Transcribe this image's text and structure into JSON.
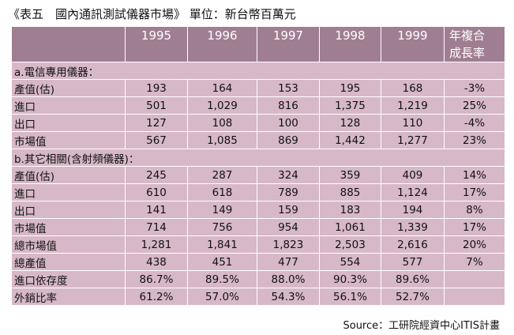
{
  "title": "《表五　國內通訊測試儀器市場》 單位：新台幣百萬元",
  "headers": [
    "1995",
    "1996",
    "1997",
    "1998",
    "1999"
  ],
  "growth_header_line1": "年複合",
  "growth_header_line2": "成長率",
  "sections": [
    {
      "label": "a.電信專用儀器：",
      "rows": [
        {
          "name": "產值(估)",
          "values": [
            "193",
            "164",
            "153",
            "195",
            "168"
          ],
          "growth": "-3%"
        },
        {
          "name": "進口",
          "values": [
            "501",
            "1,029",
            "816",
            "1,375",
            "1,219"
          ],
          "growth": "25%"
        },
        {
          "name": "出口",
          "values": [
            "127",
            "108",
            "100",
            "128",
            "110"
          ],
          "growth": "-4%"
        },
        {
          "name": "市場值",
          "values": [
            "567",
            "1,085",
            "869",
            "1,442",
            "1,277"
          ],
          "growth": "23%"
        }
      ]
    },
    {
      "label": "b.其它相關(含射頻儀器)：",
      "rows": [
        {
          "name": "產值(估)",
          "values": [
            "245",
            "287",
            "324",
            "359",
            "409"
          ],
          "growth": "14%"
        },
        {
          "name": "進口",
          "values": [
            "610",
            "618",
            "789",
            "885",
            "1,124"
          ],
          "growth": "17%"
        },
        {
          "name": "出口",
          "values": [
            "141",
            "149",
            "159",
            "183",
            "194"
          ],
          "growth": "8%"
        },
        {
          "name": "市場值",
          "values": [
            "714",
            "756",
            "954",
            "1,061",
            "1,339"
          ],
          "growth": "17%"
        },
        {
          "name": "總市場值",
          "values": [
            "1,281",
            "1,841",
            "1,823",
            "2,503",
            "2,616"
          ],
          "growth": "20%"
        },
        {
          "name": "總產值",
          "values": [
            "438",
            "451",
            "477",
            "554",
            "577"
          ],
          "growth": "7%"
        },
        {
          "name": "進口依存度",
          "values": [
            "86.7%",
            "89.5%",
            "88.0%",
            "90.3%",
            "89.6%"
          ],
          "growth": ""
        },
        {
          "name": "外銷比率",
          "values": [
            "61.2%",
            "57.0%",
            "54.3%",
            "56.1%",
            "52.7%"
          ],
          "growth": ""
        }
      ]
    }
  ],
  "source": "Source：工研院經資中心ITIS計畫",
  "colors": {
    "header_bg": "#a07e92",
    "cell_bg": "#d7b8c8",
    "header_text": "#ffffff"
  }
}
